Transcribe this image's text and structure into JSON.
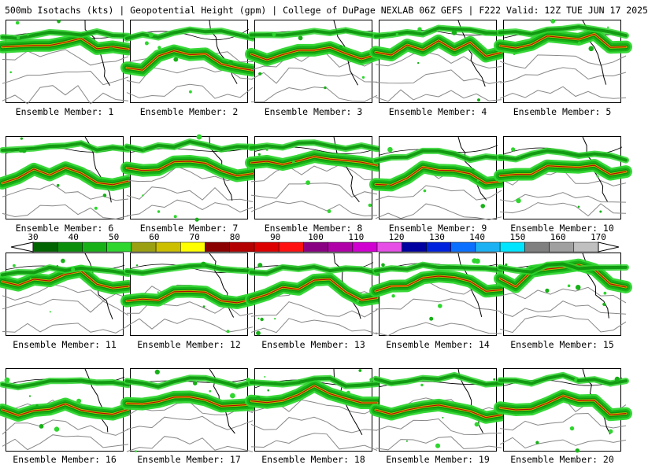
{
  "header": {
    "title": "500mb Isotachs (kts) | Geopotential Height (gpm) | College of DuPage NEXLAB   06Z GEFS | F222 Valid: 12Z TUE JUN 17 2025"
  },
  "colorbar": {
    "labels": [
      "30",
      "40",
      "50",
      "60",
      "70",
      "80",
      "90",
      "100",
      "110",
      "120",
      "130",
      "140",
      "150",
      "160",
      "170"
    ],
    "colors": [
      "#006400",
      "#0b8f0b",
      "#17b117",
      "#2ed62e",
      "#9aa011",
      "#cbbf00",
      "#ffff00",
      "#8b0000",
      "#b30000",
      "#dd0000",
      "#ff1111",
      "#8a0082",
      "#b000a8",
      "#d000d0",
      "#e64ee6",
      "#0000a0",
      "#0022dd",
      "#0b70ff",
      "#1bb1f3",
      "#00e5ff",
      "#808080",
      "#a0a0a0",
      "#c0c0c0"
    ]
  },
  "panels": [
    {
      "label": "Ensemble Member: 1"
    },
    {
      "label": "Ensemble Member: 2"
    },
    {
      "label": "Ensemble Member: 3"
    },
    {
      "label": "Ensemble Member: 4"
    },
    {
      "label": "Ensemble Member: 5"
    },
    {
      "label": "Ensemble Member: 6"
    },
    {
      "label": "Ensemble Member: 7"
    },
    {
      "label": "Ensemble Member: 8"
    },
    {
      "label": "Ensemble Member: 9"
    },
    {
      "label": "Ensemble Member: 10"
    },
    {
      "label": "Ensemble Member: 11"
    },
    {
      "label": "Ensemble Member: 12"
    },
    {
      "label": "Ensemble Member: 13"
    },
    {
      "label": "Ensemble Member: 14"
    },
    {
      "label": "Ensemble Member: 15"
    },
    {
      "label": "Ensemble Member: 16"
    },
    {
      "label": "Ensemble Member: 17"
    },
    {
      "label": "Ensemble Member: 18"
    },
    {
      "label": "Ensemble Member: 19"
    },
    {
      "label": "Ensemble Member: 20"
    }
  ]
}
